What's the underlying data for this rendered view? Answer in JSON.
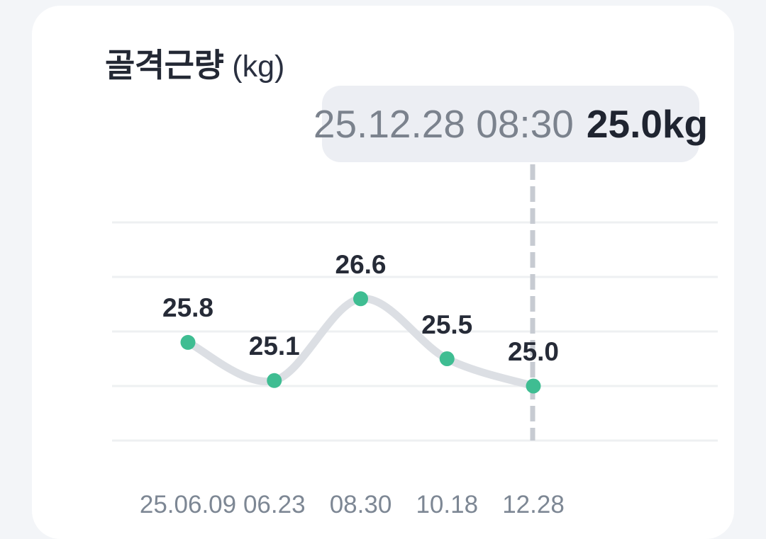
{
  "header": {
    "title": "골격근량",
    "unit": "(kg)"
  },
  "tooltip": {
    "datetime": "25.12.28 08:30",
    "value": "25.0kg"
  },
  "chart_data": {
    "type": "line",
    "title": "골격근량 (kg)",
    "categories": [
      "25.06.09",
      "06.23",
      "08.30",
      "10.18",
      "12.28"
    ],
    "values": [
      25.8,
      25.1,
      26.6,
      25.5,
      25.0
    ],
    "point_labels": [
      "25.8",
      "25.1",
      "26.6",
      "25.5",
      "25.0"
    ],
    "selected_index": 4,
    "selected_point": {
      "date": "25.12.28",
      "time": "08:30",
      "value_kg": 25.0
    },
    "ylabel": "kg",
    "ylim": [
      23.5,
      28.5
    ],
    "grid_values": [
      24,
      25,
      26,
      27,
      28
    ],
    "grid": "horizontal-only",
    "legend": "none",
    "line_style": "smooth-spline",
    "selection_marker": "vertical-dashed-line"
  },
  "colors": {
    "page_bg": "#f3f5f8",
    "card_bg": "#ffffff",
    "dot": "#3fbd92",
    "series_line": "#dcdfe4",
    "gridline": "#eef0f2",
    "dashed_selector": "#c7cbd2",
    "point_label_text": "#262b37",
    "axis_text": "#7d8794",
    "tooltip_bg": "#eceef3",
    "tooltip_date_text": "#7b828d",
    "tooltip_value_text": "#1f2430",
    "title_text": "#232834"
  }
}
